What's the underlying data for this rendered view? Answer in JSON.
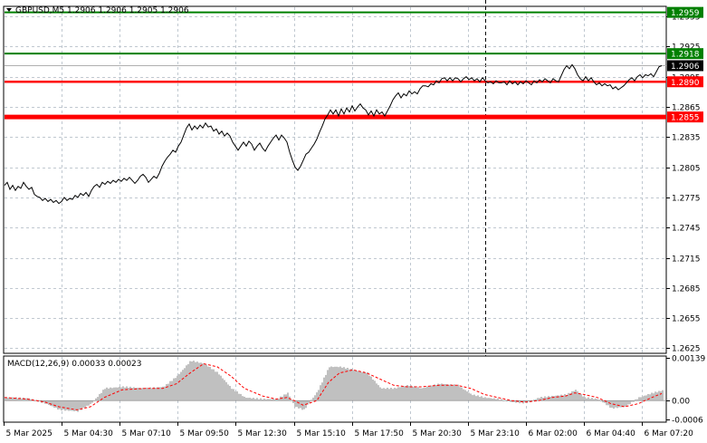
{
  "chart_data": [
    {
      "type": "line",
      "header": {
        "symbol": "GBPUSD,M5",
        "open": "1.2906",
        "high": "1.2906",
        "low": "1.2905",
        "close": "1.2906"
      },
      "ylim": [
        1.262,
        1.2965
      ],
      "y_ticks": [
        "1.2955",
        "1.2925",
        "1.2895",
        "1.2865",
        "1.2835",
        "1.2805",
        "1.2775",
        "1.2745",
        "1.2715",
        "1.2685",
        "1.2655",
        "1.2625"
      ],
      "x_ticks": [
        "5 Mar 2025",
        "5 Mar 04:30",
        "5 Mar 07:10",
        "5 Mar 09:50",
        "5 Mar 12:30",
        "5 Mar 15:10",
        "5 Mar 17:50",
        "5 Mar 20:30",
        "5 Mar 23:10",
        "6 Mar 02:00",
        "6 Mar 04:40",
        "6 Mar 07:20"
      ],
      "grid": true,
      "levels": [
        {
          "value": 1.2959,
          "label": "1.2959",
          "color": "#008000"
        },
        {
          "value": 1.2918,
          "label": "1.2918",
          "color": "#008000"
        },
        {
          "value": 1.289,
          "label": "1.2890",
          "color": "#ff0000"
        },
        {
          "value": 1.2855,
          "label": "1.2855",
          "color": "#ff0000"
        }
      ],
      "current_price": {
        "value": 1.2906,
        "label": "1.2906"
      },
      "price_points": [
        [
          0,
          1.2787
        ],
        [
          3,
          1.279
        ],
        [
          6,
          1.2783
        ],
        [
          9,
          1.2787
        ],
        [
          12,
          1.2782
        ],
        [
          15,
          1.2786
        ],
        [
          18,
          1.2784
        ],
        [
          21,
          1.279
        ],
        [
          24,
          1.2786
        ],
        [
          27,
          1.2783
        ],
        [
          30,
          1.2785
        ],
        [
          33,
          1.2778
        ],
        [
          36,
          1.2776
        ],
        [
          39,
          1.2775
        ],
        [
          42,
          1.2772
        ],
        [
          45,
          1.2774
        ],
        [
          48,
          1.2771
        ],
        [
          51,
          1.2773
        ],
        [
          54,
          1.277
        ],
        [
          57,
          1.2772
        ],
        [
          60,
          1.2769
        ],
        [
          63,
          1.2771
        ],
        [
          66,
          1.2775
        ],
        [
          69,
          1.2772
        ],
        [
          72,
          1.2774
        ],
        [
          75,
          1.2773
        ],
        [
          78,
          1.2777
        ],
        [
          81,
          1.2775
        ],
        [
          84,
          1.2779
        ],
        [
          87,
          1.2777
        ],
        [
          90,
          1.278
        ],
        [
          93,
          1.2776
        ],
        [
          96,
          1.2782
        ],
        [
          99,
          1.2786
        ],
        [
          102,
          1.2788
        ],
        [
          105,
          1.2785
        ],
        [
          108,
          1.279
        ],
        [
          111,
          1.2788
        ],
        [
          114,
          1.2791
        ],
        [
          117,
          1.2789
        ],
        [
          120,
          1.2792
        ],
        [
          123,
          1.279
        ],
        [
          126,
          1.2793
        ],
        [
          129,
          1.2791
        ],
        [
          132,
          1.2794
        ],
        [
          135,
          1.2792
        ],
        [
          138,
          1.2795
        ],
        [
          141,
          1.2792
        ],
        [
          144,
          1.2789
        ],
        [
          147,
          1.2792
        ],
        [
          150,
          1.2796
        ],
        [
          153,
          1.2798
        ],
        [
          156,
          1.2795
        ],
        [
          159,
          1.279
        ],
        [
          162,
          1.2793
        ],
        [
          165,
          1.2796
        ],
        [
          168,
          1.2794
        ],
        [
          171,
          1.2799
        ],
        [
          174,
          1.2806
        ],
        [
          177,
          1.2811
        ],
        [
          180,
          1.2815
        ],
        [
          183,
          1.2818
        ],
        [
          186,
          1.2822
        ],
        [
          189,
          1.282
        ],
        [
          192,
          1.2826
        ],
        [
          195,
          1.283
        ],
        [
          198,
          1.2837
        ],
        [
          201,
          1.2844
        ],
        [
          204,
          1.2848
        ],
        [
          207,
          1.2842
        ],
        [
          210,
          1.2846
        ],
        [
          213,
          1.2843
        ],
        [
          216,
          1.2847
        ],
        [
          219,
          1.2844
        ],
        [
          222,
          1.2849
        ],
        [
          225,
          1.2845
        ],
        [
          228,
          1.2846
        ],
        [
          231,
          1.2841
        ],
        [
          234,
          1.2843
        ],
        [
          237,
          1.2838
        ],
        [
          240,
          1.2841
        ],
        [
          243,
          1.2836
        ],
        [
          246,
          1.2839
        ],
        [
          249,
          1.2836
        ],
        [
          252,
          1.283
        ],
        [
          255,
          1.2826
        ],
        [
          258,
          1.2822
        ],
        [
          261,
          1.2826
        ],
        [
          264,
          1.283
        ],
        [
          267,
          1.2826
        ],
        [
          270,
          1.2831
        ],
        [
          273,
          1.2828
        ],
        [
          276,
          1.2822
        ],
        [
          279,
          1.2826
        ],
        [
          282,
          1.2829
        ],
        [
          285,
          1.2824
        ],
        [
          288,
          1.2821
        ],
        [
          291,
          1.2826
        ],
        [
          294,
          1.283
        ],
        [
          297,
          1.2834
        ],
        [
          300,
          1.2837
        ],
        [
          303,
          1.2832
        ],
        [
          306,
          1.2837
        ],
        [
          309,
          1.2834
        ],
        [
          312,
          1.283
        ],
        [
          315,
          1.282
        ],
        [
          318,
          1.2812
        ],
        [
          321,
          1.2805
        ],
        [
          324,
          1.2802
        ],
        [
          327,
          1.2806
        ],
        [
          330,
          1.2812
        ],
        [
          333,
          1.2818
        ],
        [
          336,
          1.282
        ],
        [
          339,
          1.2824
        ],
        [
          342,
          1.2828
        ],
        [
          345,
          1.2833
        ],
        [
          348,
          1.284
        ],
        [
          351,
          1.2846
        ],
        [
          354,
          1.2853
        ],
        [
          357,
          1.2857
        ],
        [
          360,
          1.2862
        ],
        [
          363,
          1.2858
        ],
        [
          366,
          1.2862
        ],
        [
          369,
          1.2856
        ],
        [
          372,
          1.2863
        ],
        [
          375,
          1.2858
        ],
        [
          378,
          1.2864
        ],
        [
          381,
          1.286
        ],
        [
          384,
          1.2866
        ],
        [
          387,
          1.2861
        ],
        [
          390,
          1.2865
        ],
        [
          393,
          1.2868
        ],
        [
          396,
          1.2864
        ],
        [
          399,
          1.2862
        ],
        [
          402,
          1.2857
        ],
        [
          405,
          1.2861
        ],
        [
          408,
          1.2856
        ],
        [
          411,
          1.2862
        ],
        [
          414,
          1.2858
        ],
        [
          417,
          1.286
        ],
        [
          420,
          1.2856
        ],
        [
          423,
          1.2861
        ],
        [
          426,
          1.2866
        ],
        [
          429,
          1.2872
        ],
        [
          432,
          1.2876
        ],
        [
          435,
          1.2879
        ],
        [
          438,
          1.2874
        ],
        [
          441,
          1.2878
        ],
        [
          444,
          1.2876
        ],
        [
          447,
          1.2881
        ],
        [
          450,
          1.2878
        ],
        [
          453,
          1.288
        ],
        [
          456,
          1.2878
        ],
        [
          459,
          1.2883
        ],
        [
          462,
          1.2886
        ],
        [
          465,
          1.2886
        ],
        [
          468,
          1.2885
        ],
        [
          471,
          1.2888
        ],
        [
          474,
          1.2887
        ],
        [
          477,
          1.2891
        ],
        [
          480,
          1.2889
        ],
        [
          483,
          1.2893
        ],
        [
          486,
          1.2894
        ],
        [
          489,
          1.2891
        ],
        [
          492,
          1.2894
        ],
        [
          495,
          1.2891
        ],
        [
          498,
          1.2894
        ],
        [
          501,
          1.2893
        ],
        [
          504,
          1.289
        ],
        [
          507,
          1.2893
        ],
        [
          510,
          1.2895
        ],
        [
          513,
          1.2892
        ],
        [
          516,
          1.2894
        ],
        [
          519,
          1.2891
        ],
        [
          522,
          1.2893
        ],
        [
          525,
          1.289
        ],
        [
          528,
          1.2894
        ],
        [
          531,
          1.2891
        ],
        [
          534,
          1.2889
        ],
        [
          537,
          1.289
        ],
        [
          540,
          1.2888
        ],
        [
          543,
          1.2891
        ],
        [
          546,
          1.2889
        ],
        [
          549,
          1.2889
        ],
        [
          552,
          1.289
        ],
        [
          555,
          1.2887
        ],
        [
          558,
          1.2891
        ],
        [
          561,
          1.2888
        ],
        [
          564,
          1.289
        ],
        [
          567,
          1.2887
        ],
        [
          570,
          1.289
        ],
        [
          573,
          1.2888
        ],
        [
          576,
          1.2891
        ],
        [
          579,
          1.2889
        ],
        [
          582,
          1.2887
        ],
        [
          585,
          1.2891
        ],
        [
          588,
          1.2889
        ],
        [
          591,
          1.2892
        ],
        [
          594,
          1.289
        ],
        [
          597,
          1.2893
        ],
        [
          600,
          1.2891
        ],
        [
          603,
          1.2889
        ],
        [
          606,
          1.2893
        ],
        [
          609,
          1.2891
        ],
        [
          612,
          1.289
        ],
        [
          615,
          1.2896
        ],
        [
          618,
          1.2902
        ],
        [
          621,
          1.2906
        ],
        [
          624,
          1.2903
        ],
        [
          627,
          1.2907
        ],
        [
          630,
          1.2903
        ],
        [
          633,
          1.2897
        ],
        [
          636,
          1.2893
        ],
        [
          639,
          1.2891
        ],
        [
          642,
          1.2895
        ],
        [
          645,
          1.2891
        ],
        [
          648,
          1.2894
        ],
        [
          651,
          1.289
        ],
        [
          654,
          1.2887
        ],
        [
          657,
          1.2889
        ],
        [
          660,
          1.2886
        ],
        [
          663,
          1.2888
        ],
        [
          666,
          1.2886
        ],
        [
          669,
          1.2887
        ],
        [
          672,
          1.2883
        ],
        [
          675,
          1.2885
        ],
        [
          678,
          1.2882
        ],
        [
          681,
          1.2884
        ],
        [
          684,
          1.2886
        ],
        [
          687,
          1.2889
        ],
        [
          690,
          1.2892
        ],
        [
          693,
          1.2894
        ],
        [
          696,
          1.2891
        ],
        [
          699,
          1.2895
        ],
        [
          702,
          1.2897
        ],
        [
          705,
          1.2894
        ],
        [
          708,
          1.2897
        ],
        [
          711,
          1.2896
        ],
        [
          714,
          1.2898
        ],
        [
          717,
          1.2895
        ],
        [
          720,
          1.29
        ],
        [
          723,
          1.2905
        ],
        [
          726,
          1.2906
        ]
      ]
    },
    {
      "type": "bar",
      "label": "MACD(12,26,9) 0.00033 0.00023",
      "ylim": [
        -0.0007,
        0.00145
      ],
      "y_ticks": [
        "0.00139",
        "0.00",
        "-0.0006"
      ],
      "zero_line_color": "#808080",
      "histogram_color": "#c0c0c0",
      "signal_color": "#ff0000",
      "macd_points": [
        [
          0,
          0.0001
        ],
        [
          25,
          8e-05
        ],
        [
          45,
          -0.0001
        ],
        [
          60,
          -0.0003
        ],
        [
          80,
          -0.00035
        ],
        [
          95,
          -0.0001
        ],
        [
          110,
          0.0004
        ],
        [
          130,
          0.00045
        ],
        [
          155,
          0.0004
        ],
        [
          175,
          0.00045
        ],
        [
          190,
          0.0008
        ],
        [
          205,
          0.0013
        ],
        [
          220,
          0.0012
        ],
        [
          235,
          0.0009
        ],
        [
          250,
          0.0004
        ],
        [
          265,
          0.0001
        ],
        [
          285,
          5e-05
        ],
        [
          300,
          5e-05
        ],
        [
          312,
          0.00025
        ],
        [
          320,
          -0.0002
        ],
        [
          330,
          -0.0003
        ],
        [
          345,
          0.0003
        ],
        [
          358,
          0.0011
        ],
        [
          370,
          0.0011
        ],
        [
          385,
          0.001
        ],
        [
          400,
          0.0009
        ],
        [
          415,
          0.0004
        ],
        [
          430,
          0.0004
        ],
        [
          445,
          0.0005
        ],
        [
          460,
          0.0004
        ],
        [
          480,
          0.00055
        ],
        [
          500,
          0.0005
        ],
        [
          515,
          0.0002
        ],
        [
          530,
          0.0001
        ],
        [
          545,
          5e-05
        ],
        [
          560,
          -5e-05
        ],
        [
          575,
          -8e-05
        ],
        [
          590,
          0.0001
        ],
        [
          605,
          0.00015
        ],
        [
          620,
          0.0002
        ],
        [
          630,
          0.00035
        ],
        [
          640,
          0.0001
        ],
        [
          655,
          5e-05
        ],
        [
          670,
          -0.00025
        ],
        [
          685,
          -0.0002
        ],
        [
          700,
          0.0001
        ],
        [
          715,
          0.00025
        ],
        [
          726,
          0.00033
        ]
      ],
      "signal_points": [
        [
          0,
          0.0001
        ],
        [
          25,
          5e-05
        ],
        [
          45,
          -5e-05
        ],
        [
          60,
          -0.0002
        ],
        [
          80,
          -0.0003
        ],
        [
          95,
          -0.0002
        ],
        [
          110,
          0.0001
        ],
        [
          130,
          0.00035
        ],
        [
          155,
          0.0004
        ],
        [
          175,
          0.0004
        ],
        [
          190,
          0.00055
        ],
        [
          205,
          0.0009
        ],
        [
          220,
          0.0012
        ],
        [
          235,
          0.0011
        ],
        [
          250,
          0.0008
        ],
        [
          265,
          0.0004
        ],
        [
          285,
          0.00015
        ],
        [
          300,
          5e-05
        ],
        [
          312,
          0.0001
        ],
        [
          320,
          0.0
        ],
        [
          330,
          -0.00015
        ],
        [
          345,
          0.0
        ],
        [
          358,
          0.0006
        ],
        [
          370,
          0.0009
        ],
        [
          385,
          0.001
        ],
        [
          400,
          0.0009
        ],
        [
          415,
          0.0007
        ],
        [
          430,
          0.0005
        ],
        [
          445,
          0.00045
        ],
        [
          460,
          0.00045
        ],
        [
          480,
          0.0005
        ],
        [
          500,
          0.0005
        ],
        [
          515,
          0.0004
        ],
        [
          530,
          0.0002
        ],
        [
          545,
          0.0001
        ],
        [
          560,
          0.0
        ],
        [
          575,
          -5e-05
        ],
        [
          590,
          0.0
        ],
        [
          605,
          0.0001
        ],
        [
          620,
          0.00015
        ],
        [
          630,
          0.00025
        ],
        [
          640,
          0.0002
        ],
        [
          655,
          0.0001
        ],
        [
          670,
          -0.0001
        ],
        [
          685,
          -0.0002
        ],
        [
          700,
          -0.0001
        ],
        [
          715,
          0.0001
        ],
        [
          726,
          0.00023
        ]
      ]
    }
  ]
}
